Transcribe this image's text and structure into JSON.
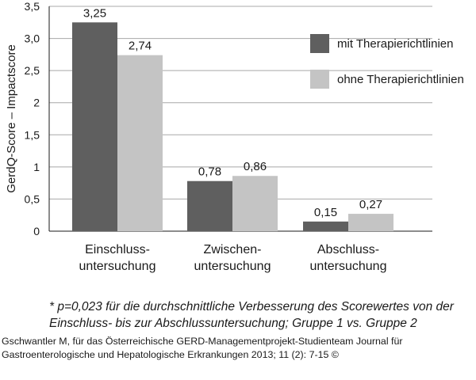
{
  "chart_data": {
    "type": "bar",
    "categories": [
      [
        "Einschluss-",
        "untersuchung"
      ],
      [
        "Zwischen-",
        "untersuchung"
      ],
      [
        "Abschluss-",
        "untersuchung"
      ]
    ],
    "series": [
      {
        "name": "mit Therapierichtlinien",
        "values": [
          3.25,
          0.78,
          0.15
        ],
        "labels": [
          "3,25",
          "0,78",
          "0,15"
        ],
        "color": "#5f5f5f"
      },
      {
        "name": "ohne Therapierichtlinien",
        "values": [
          2.74,
          0.86,
          0.27
        ],
        "labels": [
          "2,74",
          "0,86",
          "0,27"
        ],
        "color": "#c4c4c4"
      }
    ],
    "ylabel": "GerdQ-Score – Impactscore",
    "ylim": [
      0,
      3.5
    ],
    "yticks": [
      0,
      0.5,
      1,
      1.5,
      2,
      2.5,
      3,
      3.5
    ],
    "ytick_labels": [
      "0",
      "0,5",
      "1",
      "1,5",
      "2",
      "2,5",
      "3,0",
      "3,5"
    ],
    "grid": true,
    "legend_position": "top-right"
  },
  "footnote": "* p=0,023 für die durchschnittliche Verbesserung des Scorewertes von der Einschluss- bis zur Abschlussuntersuchung; Gruppe 1 vs. Gruppe 2",
  "source": "Gschwantler M, für das Österreichische GERD-Managementprojekt-Studienteam Journal für Gastroenterologische und Hepatologische Erkrankungen 2013; 11 (2): 7-15 ©"
}
